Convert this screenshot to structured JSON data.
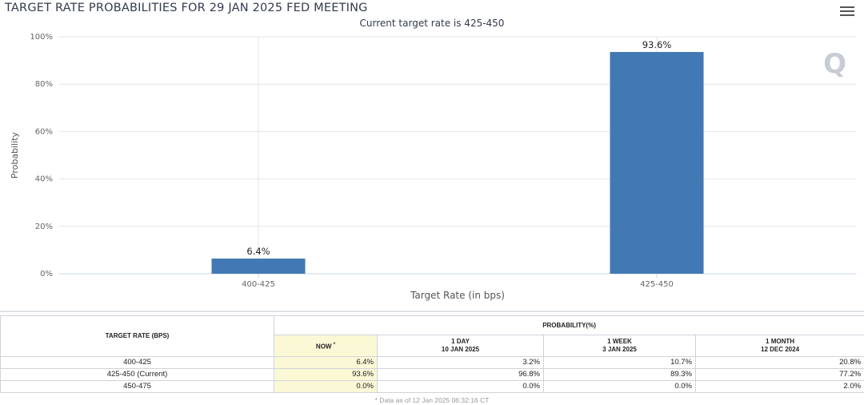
{
  "header": {
    "title": "TARGET RATE PROBABILITIES FOR 29 JAN 2025 FED MEETING",
    "subtitle": "Current target rate is 425-450"
  },
  "chart_data": {
    "type": "bar",
    "categories": [
      "400-425",
      "425-450"
    ],
    "values": [
      6.4,
      93.6
    ],
    "data_labels": [
      "6.4%",
      "93.6%"
    ],
    "ylabel": "Probability",
    "xlabel": "Target Rate (in bps)",
    "ylim": [
      0,
      100
    ],
    "yticks": [
      "0%",
      "20%",
      "40%",
      "60%",
      "80%",
      "100%"
    ],
    "ytick_values": [
      0,
      20,
      40,
      60,
      80,
      100
    ],
    "bar_color": "#4279b4",
    "grid": true
  },
  "watermark": "Q",
  "table": {
    "col_rate_header": "TARGET RATE (BPS)",
    "prob_header": "PROBABILITY(%)",
    "sub_headers": [
      {
        "line1": "NOW",
        "line2": ""
      },
      {
        "line1": "1 DAY",
        "line2": "10 JAN 2025"
      },
      {
        "line1": "1 WEEK",
        "line2": "3 JAN 2025"
      },
      {
        "line1": "1 MONTH",
        "line2": "12 DEC 2024"
      }
    ],
    "now_marker": "*",
    "rows": [
      {
        "rate": "400-425",
        "now": "6.4%",
        "day": "3.2%",
        "week": "10.7%",
        "month": "20.8%"
      },
      {
        "rate": "425-450 (Current)",
        "now": "93.6%",
        "day": "96.8%",
        "week": "89.3%",
        "month": "77.2%"
      },
      {
        "rate": "450-475",
        "now": "0.0%",
        "day": "0.0%",
        "week": "0.0%",
        "month": "2.0%"
      }
    ],
    "footnote": "* Data as of 12 Jan 2025 06:32:16 CT"
  }
}
